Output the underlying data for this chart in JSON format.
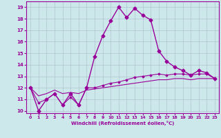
{
  "xlabel": "Windchill (Refroidissement éolien,°C)",
  "background_color": "#cce8ea",
  "line_color": "#990099",
  "grid_color": "#aabbcc",
  "hours": [
    0,
    1,
    2,
    3,
    4,
    5,
    6,
    7,
    8,
    9,
    10,
    11,
    12,
    13,
    14,
    15,
    16,
    17,
    18,
    19,
    20,
    21,
    22,
    23
  ],
  "temp_main": [
    12.0,
    10.0,
    11.0,
    11.5,
    10.5,
    11.5,
    10.5,
    12.0,
    14.7,
    16.5,
    17.8,
    19.0,
    18.1,
    18.9,
    18.3,
    17.9,
    15.2,
    14.3,
    13.8,
    13.5,
    13.1,
    13.5,
    13.3,
    12.8
  ],
  "line_straight1": [
    12.0,
    10.7,
    11.0,
    11.5,
    10.5,
    11.2,
    10.5,
    12.0,
    12.0,
    12.2,
    12.4,
    12.5,
    12.7,
    12.9,
    13.0,
    13.1,
    13.2,
    13.1,
    13.2,
    13.2,
    13.1,
    13.2,
    13.2,
    12.8
  ],
  "line_straight2": [
    12.0,
    11.3,
    11.5,
    11.8,
    11.5,
    11.6,
    11.5,
    11.8,
    11.9,
    12.0,
    12.1,
    12.2,
    12.3,
    12.4,
    12.5,
    12.6,
    12.7,
    12.7,
    12.8,
    12.8,
    12.7,
    12.8,
    12.8,
    12.8
  ],
  "ylim": [
    9.8,
    19.5
  ],
  "xlim": [
    -0.5,
    23.5
  ],
  "yticks": [
    10,
    11,
    12,
    13,
    14,
    15,
    16,
    17,
    18,
    19
  ],
  "xticks": [
    0,
    1,
    2,
    3,
    4,
    5,
    6,
    7,
    8,
    9,
    10,
    11,
    12,
    13,
    14,
    15,
    16,
    17,
    18,
    19,
    20,
    21,
    22,
    23
  ]
}
